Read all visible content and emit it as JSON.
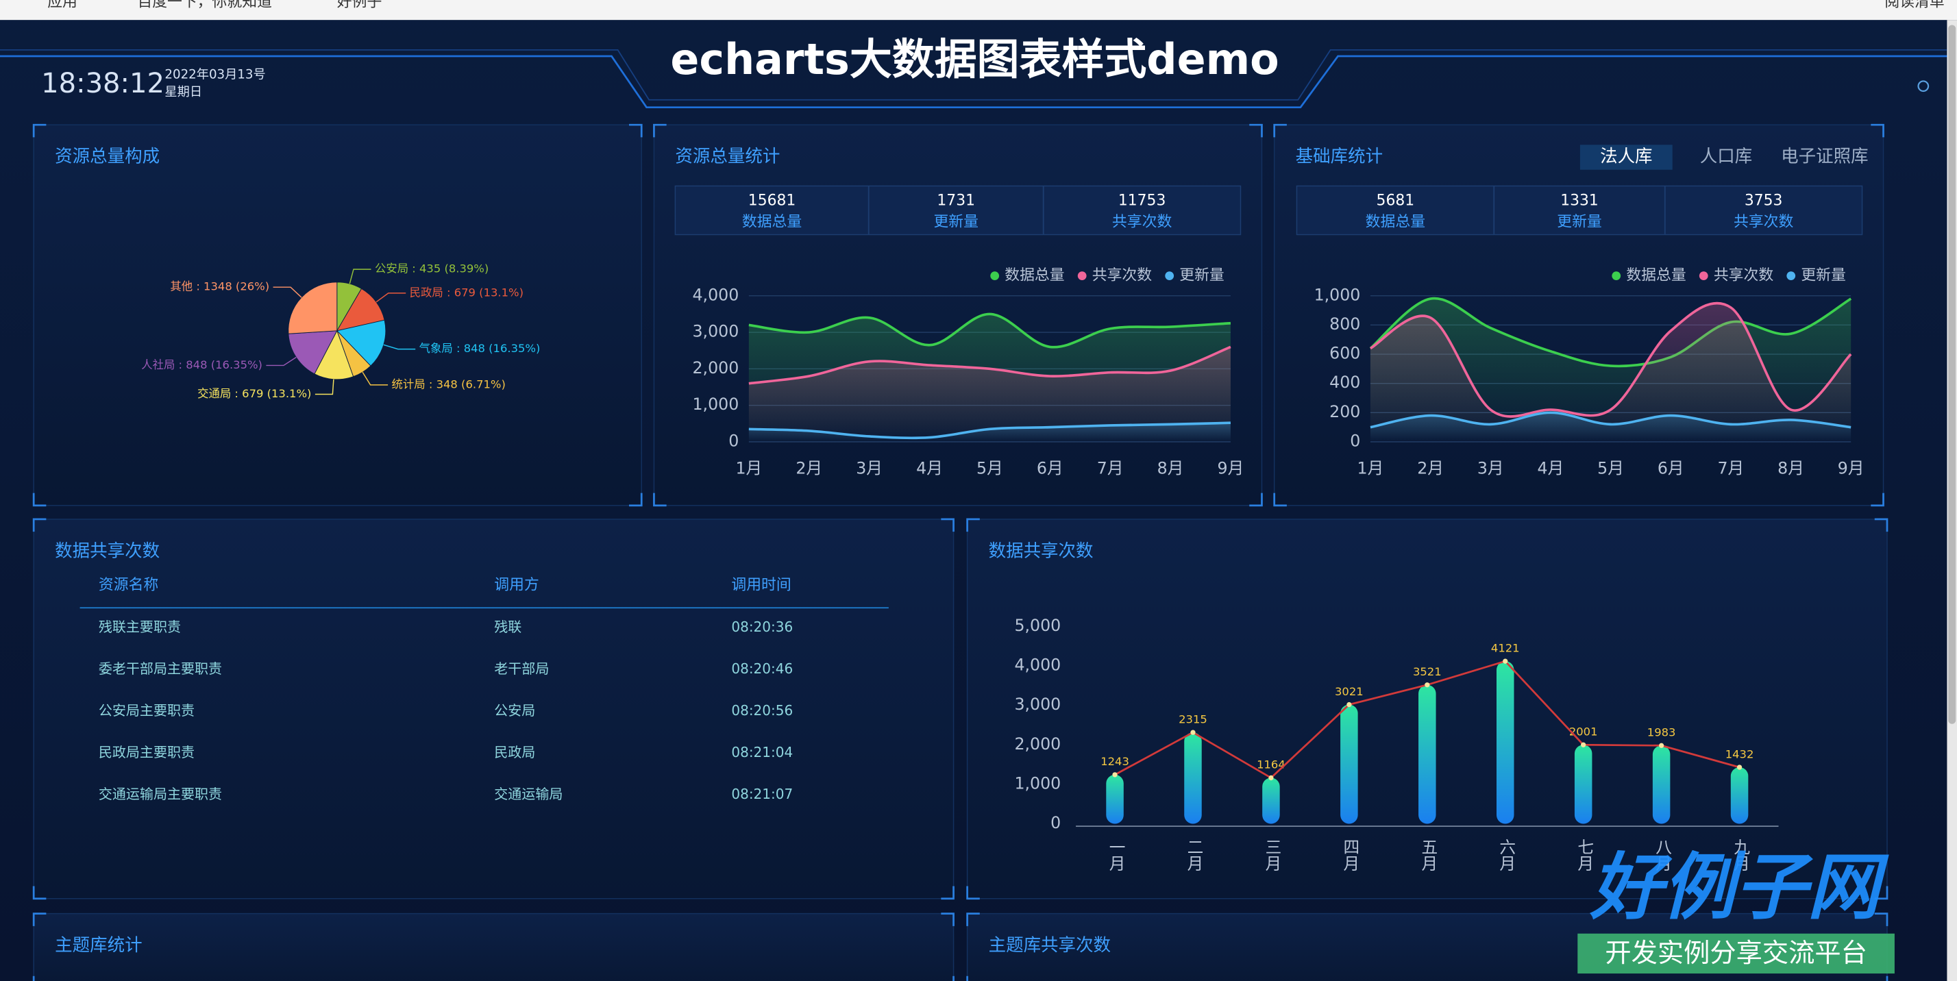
{
  "browser": {
    "bookmarks": [
      "应用",
      "百度一下，你就知道",
      "好例子"
    ],
    "reading_list": "阅读清单"
  },
  "header": {
    "time": "18:38:12",
    "date": "2022年03月13号",
    "weekday": "星期日",
    "title": "echarts大数据图表样式demo"
  },
  "panels": [
    {
      "title": "资源总量构成"
    },
    {
      "title": "资源总量统计",
      "stats": [
        {
          "value": "15681",
          "label": "数据总量"
        },
        {
          "value": "1731",
          "label": "更新量"
        },
        {
          "value": "11753",
          "label": "共享次数"
        }
      ]
    },
    {
      "title": "基础库统计",
      "tabs": [
        "法人库",
        "人口库",
        "电子证照库"
      ],
      "stats": [
        {
          "value": "5681",
          "label": "数据总量"
        },
        {
          "value": "1331",
          "label": "更新量"
        },
        {
          "value": "3753",
          "label": "共享次数"
        }
      ]
    },
    {
      "title": "数据共享次数"
    },
    {
      "title": "数据共享次数"
    },
    {
      "title": "主题库统计"
    },
    {
      "title": "主题库共享次数"
    }
  ],
  "table": {
    "columns": [
      "资源名称",
      "调用方",
      "调用时间"
    ],
    "rows": [
      [
        "残联主要职责",
        "残联",
        "08:20:36"
      ],
      [
        "委老干部局主要职责",
        "老干部局",
        "08:20:46"
      ],
      [
        "公安局主要职责",
        "公安局",
        "08:20:56"
      ],
      [
        "民政局主要职责",
        "民政局",
        "08:21:04"
      ],
      [
        "交通运输局主要职责",
        "交通运输局",
        "08:21:07"
      ]
    ]
  },
  "watermark": {
    "brand": "好例子网",
    "slogan": "开发实例分享交流平台"
  },
  "chart_data": [
    {
      "type": "pie",
      "categories": [
        "公安局",
        "民政局",
        "气象局",
        "统计局",
        "交通局",
        "人社局",
        "其他"
      ],
      "values": [
        435,
        679,
        848,
        348,
        679,
        848,
        1348
      ],
      "value_labels": [
        "公安局 : 435 (8.39%)",
        "民政局 : 679 (13.1%)",
        "气象局 : 848 (16.35%)",
        "统计局 : 348 (6.71%)",
        "交通局 : 679 (13.1%)",
        "人社局 : 848 (16.35%)",
        "其他 : 1348 (26%)"
      ],
      "colors": [
        "#93c13a",
        "#ea5a3c",
        "#20c3f3",
        "#f5c243",
        "#f6e35e",
        "#9b59b6",
        "#ff9466"
      ]
    },
    {
      "type": "line",
      "categories": [
        "1月",
        "2月",
        "3月",
        "4月",
        "5月",
        "6月",
        "7月",
        "8月",
        "9月"
      ],
      "ylim": [
        0,
        4000
      ],
      "yticks": [
        0,
        {
          "value": 1000,
          "label": "1,000"
        },
        {
          "value": 2000,
          "label": "2,000"
        },
        {
          "value": 3000,
          "label": "3,000"
        },
        {
          "value": 4000,
          "label": "4,000"
        }
      ],
      "grid": true,
      "legend": "top-right",
      "series": [
        {
          "name": "数据总量",
          "color": "#3ccf4e",
          "values": [
            3200,
            3000,
            3400,
            2650,
            3500,
            2600,
            3100,
            3150,
            3250
          ]
        },
        {
          "name": "共享次数",
          "color": "#f0659a",
          "values": [
            1600,
            1800,
            2200,
            2100,
            2000,
            1800,
            1900,
            1950,
            2600
          ]
        },
        {
          "name": "更新量",
          "color": "#4fb3f0",
          "values": [
            350,
            300,
            150,
            120,
            350,
            400,
            450,
            480,
            520
          ]
        }
      ]
    },
    {
      "type": "line",
      "categories": [
        "1月",
        "2月",
        "3月",
        "4月",
        "5月",
        "6月",
        "7月",
        "8月",
        "9月"
      ],
      "ylim": [
        0,
        1000
      ],
      "yticks": [
        0,
        200,
        400,
        600,
        800,
        {
          "value": 1000,
          "label": "1,000"
        }
      ],
      "grid": true,
      "legend": "top-right",
      "series": [
        {
          "name": "数据总量",
          "color": "#3ccf4e",
          "values": [
            640,
            980,
            780,
            620,
            520,
            580,
            820,
            740,
            980
          ]
        },
        {
          "name": "共享次数",
          "color": "#f0659a",
          "values": [
            640,
            850,
            220,
            220,
            220,
            760,
            920,
            220,
            600
          ]
        },
        {
          "name": "更新量",
          "color": "#4fb3f0",
          "values": [
            100,
            180,
            120,
            200,
            120,
            180,
            120,
            150,
            100
          ]
        }
      ]
    },
    {
      "type": "bar",
      "categories": [
        "一月",
        "二月",
        "三月",
        "四月",
        "五月",
        "六月",
        "七月",
        "八月",
        "九月"
      ],
      "values": [
        1243,
        2315,
        1164,
        3021,
        3521,
        4121,
        2001,
        1983,
        1432
      ],
      "ylim": [
        0,
        5000
      ],
      "yticks": [
        0,
        {
          "value": 1000,
          "label": "1,000"
        },
        {
          "value": 2000,
          "label": "2,000"
        },
        {
          "value": 3000,
          "label": "3,000"
        },
        {
          "value": 4000,
          "label": "4,000"
        },
        {
          "value": 5000,
          "label": "5,000"
        }
      ],
      "grid": false,
      "color": [
        "#2ee6a0",
        "#1a7ff0"
      ],
      "line_color": "#d23a3a",
      "label_color": "#f5c842"
    }
  ]
}
